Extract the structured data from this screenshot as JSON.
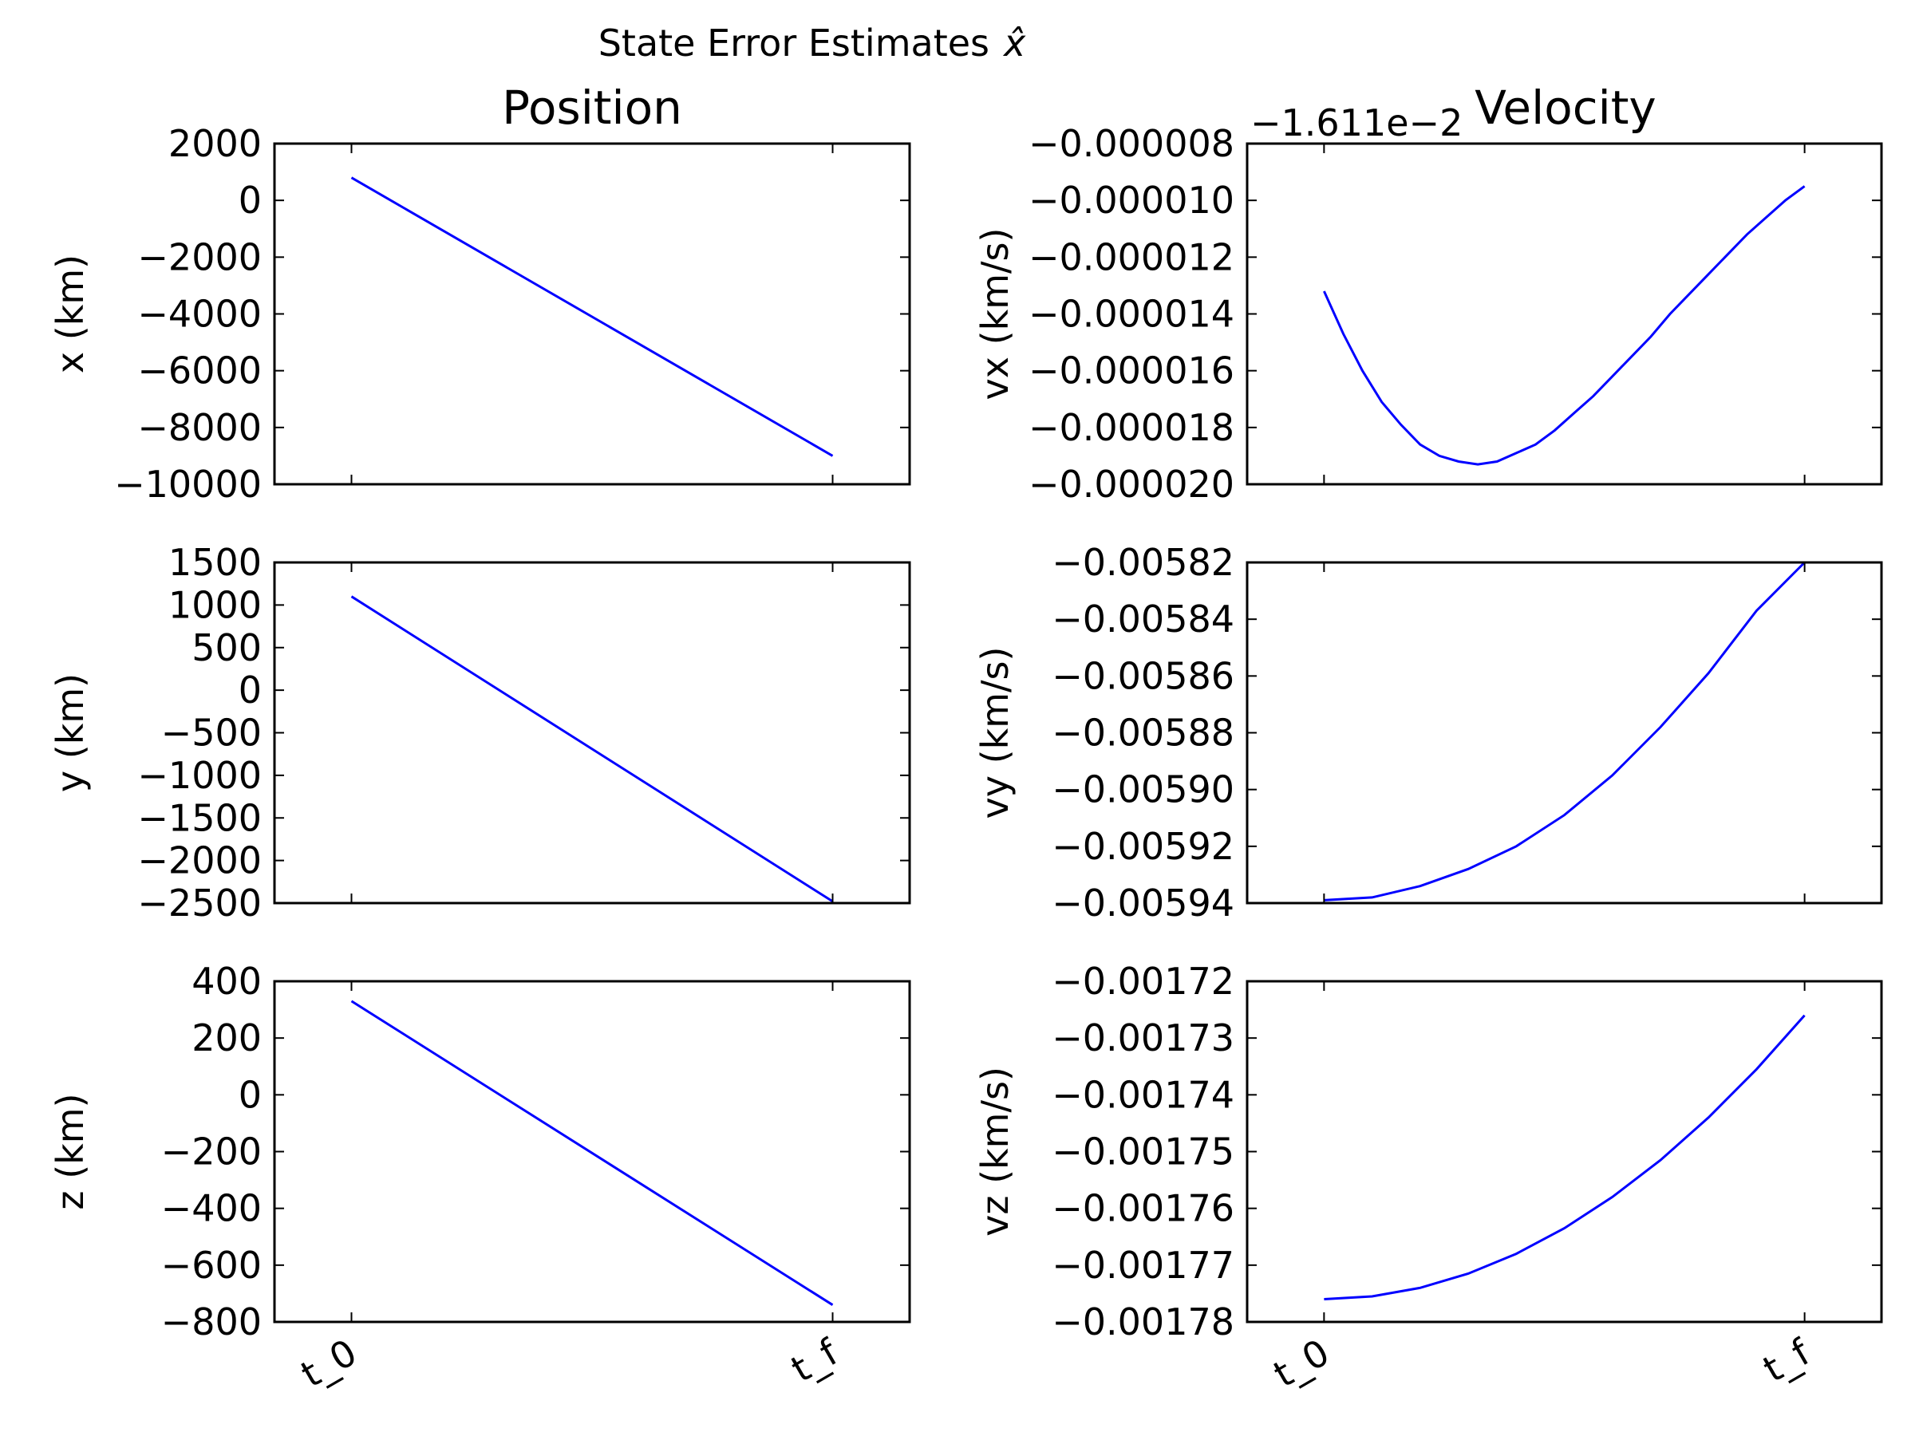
{
  "figure": {
    "suptitle": "State Error Estimates",
    "suptitle_symbol": "x̂",
    "column_titles": [
      "Position",
      "Velocity"
    ]
  },
  "chart_data": [
    {
      "type": "line",
      "row": 0,
      "col": 0,
      "ylabel": "x (km)",
      "xlabel": "",
      "xticks": [],
      "show_xticks": false,
      "xlim": [
        -0.16,
        1.16
      ],
      "ylim": [
        -10000,
        2000
      ],
      "yticks": [
        -10000,
        -8000,
        -6000,
        -4000,
        -2000,
        0,
        2000
      ],
      "ytick_labels": [
        "−10000",
        "−8000",
        "−6000",
        "−4000",
        "−2000",
        "0",
        "2000"
      ],
      "offset_text": "",
      "series": [
        {
          "color": "#0000ff",
          "x": [
            0,
            1
          ],
          "y": [
            800,
            -9000
          ]
        }
      ]
    },
    {
      "type": "line",
      "row": 0,
      "col": 1,
      "ylabel": "vx (km/s)",
      "xlabel": "",
      "xticks": [],
      "show_xticks": false,
      "xlim": [
        -0.16,
        1.16
      ],
      "ylim": [
        -2e-05,
        -8e-06
      ],
      "yticks": [
        -2e-05,
        -1.8e-05,
        -1.6e-05,
        -1.4e-05,
        -1.2e-05,
        -1e-05,
        -8e-06
      ],
      "ytick_labels": [
        "−0.000020",
        "−0.000018",
        "−0.000016",
        "−0.000014",
        "−0.000012",
        "−0.000010",
        "−0.000008"
      ],
      "offset_text": "−1.611e−2",
      "series": [
        {
          "color": "#0000ff",
          "x": [
            0,
            0.04,
            0.08,
            0.12,
            0.16,
            0.2,
            0.24,
            0.28,
            0.32,
            0.36,
            0.4,
            0.44,
            0.48,
            0.52,
            0.56,
            0.6,
            0.64,
            0.68,
            0.72,
            0.76,
            0.8,
            0.84,
            0.88,
            0.92,
            0.96,
            1.0
          ],
          "y": [
            -1.32e-05,
            -1.47e-05,
            -1.6e-05,
            -1.71e-05,
            -1.79e-05,
            -1.86e-05,
            -1.9e-05,
            -1.92e-05,
            -1.93e-05,
            -1.92e-05,
            -1.89e-05,
            -1.86e-05,
            -1.81e-05,
            -1.75e-05,
            -1.69e-05,
            -1.62e-05,
            -1.55e-05,
            -1.48e-05,
            -1.4e-05,
            -1.33e-05,
            -1.26e-05,
            -1.19e-05,
            -1.12e-05,
            -1.06e-05,
            -1e-05,
            -9.5e-06
          ]
        }
      ]
    },
    {
      "type": "line",
      "row": 1,
      "col": 0,
      "ylabel": "y (km)",
      "xlabel": "",
      "xticks": [],
      "show_xticks": false,
      "xlim": [
        -0.16,
        1.16
      ],
      "ylim": [
        -2500,
        1500
      ],
      "yticks": [
        -2500,
        -2000,
        -1500,
        -1000,
        -500,
        0,
        500,
        1000,
        1500
      ],
      "ytick_labels": [
        "−2500",
        "−2000",
        "−1500",
        "−1000",
        "−500",
        "0",
        "500",
        "1000",
        "1500"
      ],
      "offset_text": "",
      "series": [
        {
          "color": "#0000ff",
          "x": [
            0,
            1
          ],
          "y": [
            1100,
            -2480
          ]
        }
      ]
    },
    {
      "type": "line",
      "row": 1,
      "col": 1,
      "ylabel": "vy (km/s)",
      "xlabel": "",
      "xticks": [],
      "show_xticks": false,
      "xlim": [
        -0.16,
        1.16
      ],
      "ylim": [
        -0.00594,
        -0.00582
      ],
      "yticks": [
        -0.00594,
        -0.00592,
        -0.0059,
        -0.00588,
        -0.00586,
        -0.00584,
        -0.00582
      ],
      "ytick_labels": [
        "−0.00594",
        "−0.00592",
        "−0.00590",
        "−0.00588",
        "−0.00586",
        "−0.00584",
        "−0.00582"
      ],
      "offset_text": "",
      "series": [
        {
          "color": "#0000ff",
          "x": [
            0,
            0.1,
            0.2,
            0.3,
            0.4,
            0.5,
            0.6,
            0.7,
            0.8,
            0.9,
            1.0
          ],
          "y": [
            -0.005939,
            -0.005938,
            -0.005934,
            -0.005928,
            -0.00592,
            -0.005909,
            -0.005895,
            -0.005878,
            -0.005859,
            -0.005837,
            -0.00582
          ]
        }
      ]
    },
    {
      "type": "line",
      "row": 2,
      "col": 0,
      "ylabel": "z (km)",
      "xlabel": "",
      "xticks": [
        "t_0",
        "t_f"
      ],
      "show_xticks": true,
      "xlim": [
        -0.16,
        1.16
      ],
      "ylim": [
        -800,
        400
      ],
      "yticks": [
        -800,
        -600,
        -400,
        -200,
        0,
        200,
        400
      ],
      "ytick_labels": [
        "−800",
        "−600",
        "−400",
        "−200",
        "0",
        "200",
        "400"
      ],
      "offset_text": "",
      "series": [
        {
          "color": "#0000ff",
          "x": [
            0,
            1
          ],
          "y": [
            330,
            -740
          ]
        }
      ]
    },
    {
      "type": "line",
      "row": 2,
      "col": 1,
      "ylabel": "vz (km/s)",
      "xlabel": "",
      "xticks": [
        "t_0",
        "t_f"
      ],
      "show_xticks": true,
      "xlim": [
        -0.16,
        1.16
      ],
      "ylim": [
        -0.00178,
        -0.00172
      ],
      "yticks": [
        -0.00178,
        -0.00177,
        -0.00176,
        -0.00175,
        -0.00174,
        -0.00173,
        -0.00172
      ],
      "ytick_labels": [
        "−0.00178",
        "−0.00177",
        "−0.00176",
        "−0.00175",
        "−0.00174",
        "−0.00173",
        "−0.00172"
      ],
      "offset_text": "",
      "series": [
        {
          "color": "#0000ff",
          "x": [
            0,
            0.1,
            0.2,
            0.3,
            0.4,
            0.5,
            0.6,
            0.7,
            0.8,
            0.9,
            1.0
          ],
          "y": [
            -0.001776,
            -0.0017755,
            -0.001774,
            -0.0017715,
            -0.001768,
            -0.0017635,
            -0.001758,
            -0.0017515,
            -0.001744,
            -0.0017355,
            -0.001726
          ]
        }
      ]
    }
  ]
}
